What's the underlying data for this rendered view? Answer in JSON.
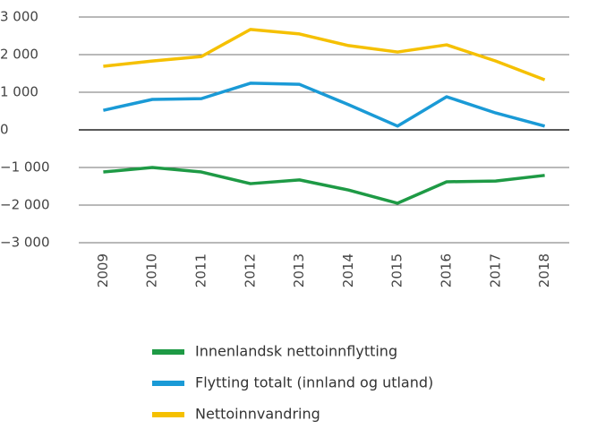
{
  "chart_data": {
    "type": "line",
    "categories": [
      "2009",
      "2010",
      "2011",
      "2012",
      "2013",
      "2014",
      "2015",
      "2016",
      "2017",
      "2018"
    ],
    "series": [
      {
        "name": "Innenlandsk nettoinnflytting",
        "color": "#1e9a45",
        "values": [
          -1120,
          -1000,
          -1120,
          -1430,
          -1330,
          -1600,
          -1950,
          -1380,
          -1360,
          -1210
        ]
      },
      {
        "name": "Flytting totalt (innland og utland)",
        "color": "#1a9ad6",
        "values": [
          520,
          810,
          830,
          1240,
          1210,
          670,
          100,
          880,
          450,
          100
        ]
      },
      {
        "name": "Nettoinnvandring",
        "color": "#f5c000",
        "values": [
          1690,
          1830,
          1950,
          2670,
          2550,
          2240,
          2070,
          2260,
          1830,
          1330
        ]
      }
    ],
    "ylim": [
      -3000,
      3000
    ],
    "yticks": [
      {
        "value": -3000,
        "label": "−3 000"
      },
      {
        "value": -2000,
        "label": "−2 000"
      },
      {
        "value": -1000,
        "label": "−1 000"
      },
      0,
      {
        "value": 1000,
        "label": "1 000"
      },
      {
        "value": 2000,
        "label": "2 000"
      },
      {
        "value": 3000,
        "label": "3 000"
      }
    ],
    "grid": true
  }
}
